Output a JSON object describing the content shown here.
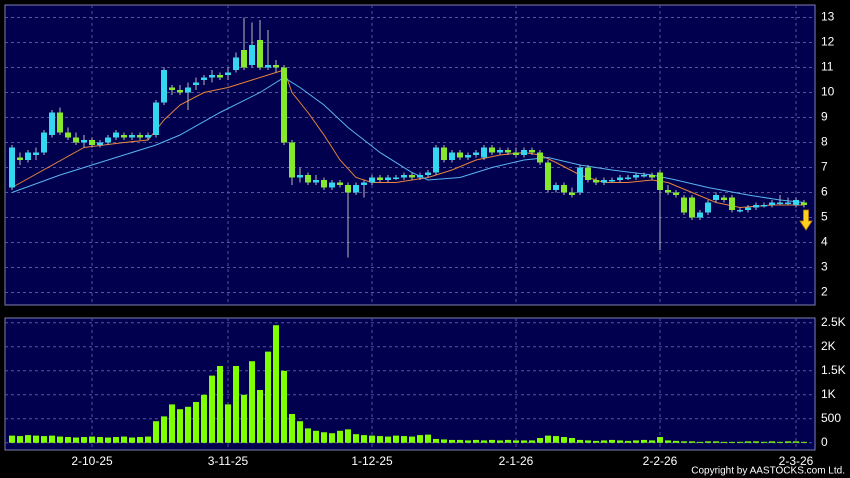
{
  "chart_data": {
    "type": "candlestick",
    "price_ylim": [
      1.5,
      13.5
    ],
    "price_yticks": [
      2,
      3,
      4,
      5,
      6,
      7,
      8,
      9,
      10,
      11,
      12,
      13
    ],
    "volume_ylim": [
      -150,
      2600
    ],
    "volume_yticks": [
      0,
      500,
      {
        "value": 1000,
        "label": "1K"
      },
      {
        "value": 1500,
        "label": "1.5K"
      },
      {
        "value": 2000,
        "label": "2K"
      },
      {
        "value": 2500,
        "label": "2.5K"
      }
    ],
    "grid": true,
    "up_color": "#35d6ef",
    "down_color": "#86e82e",
    "volume_color": "#7fff00",
    "categories": [
      null,
      null,
      null,
      null,
      null,
      null,
      null,
      null,
      null,
      null,
      "2-10-25",
      null,
      null,
      null,
      null,
      null,
      null,
      null,
      null,
      null,
      null,
      null,
      null,
      null,
      null,
      null,
      null,
      "3-11-25",
      null,
      null,
      null,
      null,
      null,
      null,
      null,
      null,
      null,
      null,
      null,
      null,
      null,
      null,
      null,
      null,
      null,
      "1-12-25",
      null,
      null,
      null,
      null,
      null,
      null,
      null,
      null,
      null,
      null,
      null,
      null,
      null,
      null,
      null,
      null,
      null,
      "2-1-26",
      null,
      null,
      null,
      null,
      null,
      null,
      null,
      null,
      null,
      null,
      null,
      null,
      null,
      null,
      null,
      null,
      null,
      "2-2-26",
      null,
      null,
      null,
      null,
      null,
      null,
      null,
      null,
      null,
      null,
      null,
      null,
      null,
      null,
      null,
      null,
      "2-3-26",
      null
    ],
    "candles": [
      [
        6.2,
        7.9,
        6.1,
        7.8
      ],
      [
        7.4,
        7.6,
        7.1,
        7.3
      ],
      [
        7.3,
        7.7,
        7.2,
        7.6
      ],
      [
        7.5,
        7.8,
        7.3,
        7.6
      ],
      [
        7.6,
        8.5,
        7.5,
        8.4
      ],
      [
        8.3,
        9.3,
        8.2,
        9.2
      ],
      [
        9.2,
        9.4,
        8.3,
        8.4
      ],
      [
        8.4,
        8.6,
        8.1,
        8.2
      ],
      [
        8.2,
        8.4,
        7.9,
        8.0
      ],
      [
        8.0,
        8.3,
        7.8,
        8.1
      ],
      [
        8.1,
        8.2,
        7.8,
        7.9
      ],
      [
        7.9,
        8.1,
        7.8,
        8.0
      ],
      [
        8.0,
        8.3,
        7.9,
        8.2
      ],
      [
        8.2,
        8.5,
        8.1,
        8.4
      ],
      [
        8.3,
        8.4,
        8.1,
        8.2
      ],
      [
        8.2,
        8.4,
        8.1,
        8.3
      ],
      [
        8.3,
        8.4,
        8.1,
        8.2
      ],
      [
        8.2,
        8.4,
        8.1,
        8.3
      ],
      [
        8.3,
        9.7,
        8.2,
        9.6
      ],
      [
        9.6,
        11.0,
        9.5,
        10.9
      ],
      [
        10.2,
        10.3,
        9.9,
        10.1
      ],
      [
        10.1,
        10.3,
        9.9,
        10.0
      ],
      [
        10.0,
        10.4,
        9.3,
        10.2
      ],
      [
        10.3,
        10.6,
        10.1,
        10.4
      ],
      [
        10.5,
        10.7,
        10.3,
        10.6
      ],
      [
        10.6,
        10.9,
        10.4,
        10.7
      ],
      [
        10.7,
        10.8,
        10.5,
        10.6
      ],
      [
        10.7,
        11.0,
        10.5,
        10.8
      ],
      [
        10.9,
        11.6,
        10.8,
        11.4
      ],
      [
        11.7,
        13.0,
        10.9,
        11.0
      ],
      [
        11.1,
        12.8,
        11.0,
        11.9
      ],
      [
        12.1,
        12.9,
        10.9,
        11.0
      ],
      [
        11.0,
        12.5,
        10.9,
        11.1
      ],
      [
        11.1,
        11.3,
        10.8,
        11.0
      ],
      [
        11.0,
        11.1,
        7.9,
        8.0
      ],
      [
        8.0,
        8.1,
        6.3,
        6.6
      ],
      [
        6.6,
        7.0,
        6.4,
        6.7
      ],
      [
        6.7,
        6.8,
        6.3,
        6.4
      ],
      [
        6.4,
        6.7,
        6.3,
        6.5
      ],
      [
        6.5,
        6.6,
        6.1,
        6.2
      ],
      [
        6.2,
        6.5,
        6.1,
        6.4
      ],
      [
        6.4,
        6.5,
        6.2,
        6.3
      ],
      [
        6.3,
        6.4,
        3.4,
        6.0
      ],
      [
        6.0,
        6.4,
        5.9,
        6.3
      ],
      [
        6.3,
        6.5,
        5.8,
        6.4
      ],
      [
        6.4,
        6.7,
        6.3,
        6.6
      ],
      [
        6.6,
        6.7,
        6.4,
        6.5
      ],
      [
        6.5,
        6.7,
        6.4,
        6.6
      ],
      [
        6.6,
        6.7,
        6.5,
        6.6
      ],
      [
        6.6,
        6.8,
        6.5,
        6.7
      ],
      [
        6.7,
        6.8,
        6.5,
        6.6
      ],
      [
        6.6,
        6.8,
        6.5,
        6.7
      ],
      [
        6.7,
        6.9,
        6.6,
        6.8
      ],
      [
        6.8,
        7.9,
        6.7,
        7.8
      ],
      [
        7.8,
        7.9,
        7.2,
        7.3
      ],
      [
        7.3,
        7.7,
        7.2,
        7.6
      ],
      [
        7.6,
        7.7,
        7.3,
        7.4
      ],
      [
        7.4,
        7.6,
        7.3,
        7.5
      ],
      [
        7.5,
        7.7,
        7.4,
        7.6
      ],
      [
        7.4,
        7.9,
        7.3,
        7.8
      ],
      [
        7.8,
        7.9,
        7.5,
        7.6
      ],
      [
        7.6,
        7.8,
        7.5,
        7.7
      ],
      [
        7.7,
        7.8,
        7.5,
        7.6
      ],
      [
        7.6,
        7.8,
        7.4,
        7.5
      ],
      [
        7.5,
        7.8,
        7.4,
        7.7
      ],
      [
        7.7,
        7.8,
        7.5,
        7.6
      ],
      [
        7.6,
        7.7,
        7.1,
        7.2
      ],
      [
        7.2,
        7.3,
        6.0,
        6.1
      ],
      [
        6.1,
        6.4,
        6.0,
        6.3
      ],
      [
        6.3,
        6.4,
        5.9,
        6.0
      ],
      [
        6.0,
        6.2,
        5.8,
        5.9
      ],
      [
        6.0,
        7.1,
        5.9,
        7.0
      ],
      [
        7.0,
        7.1,
        6.4,
        6.5
      ],
      [
        6.5,
        6.6,
        6.3,
        6.4
      ],
      [
        6.4,
        6.6,
        6.3,
        6.5
      ],
      [
        6.5,
        6.6,
        6.4,
        6.5
      ],
      [
        6.5,
        6.7,
        6.4,
        6.6
      ],
      [
        6.6,
        6.7,
        6.5,
        6.6
      ],
      [
        6.6,
        6.8,
        6.5,
        6.7
      ],
      [
        6.7,
        6.8,
        6.6,
        6.7
      ],
      [
        6.7,
        6.8,
        6.5,
        6.6
      ],
      [
        6.8,
        6.9,
        3.7,
        6.1
      ],
      [
        6.1,
        6.3,
        5.9,
        6.0
      ],
      [
        6.0,
        6.1,
        5.8,
        5.9
      ],
      [
        5.8,
        5.9,
        5.1,
        5.2
      ],
      [
        5.8,
        5.9,
        4.9,
        5.0
      ],
      [
        5.0,
        5.3,
        4.9,
        5.2
      ],
      [
        5.2,
        5.7,
        5.1,
        5.6
      ],
      [
        5.7,
        6.0,
        5.6,
        5.9
      ],
      [
        5.8,
        5.9,
        5.6,
        5.7
      ],
      [
        5.8,
        5.9,
        5.2,
        5.3
      ],
      [
        5.3,
        5.4,
        5.2,
        5.3
      ],
      [
        5.3,
        5.5,
        5.2,
        5.4
      ],
      [
        5.4,
        5.6,
        5.3,
        5.5
      ],
      [
        5.5,
        5.6,
        5.4,
        5.5
      ],
      [
        5.5,
        5.7,
        5.4,
        5.6
      ],
      [
        5.6,
        5.9,
        5.5,
        5.6
      ],
      [
        5.6,
        5.8,
        5.5,
        5.6
      ],
      [
        5.5,
        5.8,
        5.4,
        5.7
      ],
      [
        5.6,
        5.7,
        5.4,
        5.5
      ]
    ],
    "volume": [
      150,
      140,
      160,
      150,
      140,
      150,
      130,
      120,
      110,
      120,
      130,
      120,
      110,
      120,
      130,
      110,
      120,
      130,
      450,
      550,
      800,
      700,
      750,
      850,
      1000,
      1400,
      1600,
      800,
      1600,
      1000,
      1700,
      1100,
      1900,
      2450,
      1500,
      600,
      450,
      300,
      250,
      220,
      200,
      250,
      280,
      180,
      160,
      150,
      140,
      130,
      150,
      140,
      130,
      160,
      170,
      80,
      70,
      60,
      60,
      50,
      60,
      50,
      60,
      50,
      60,
      50,
      50,
      50,
      100,
      150,
      140,
      120,
      100,
      60,
      50,
      40,
      50,
      60,
      50,
      40,
      50,
      60,
      50,
      120,
      50,
      40,
      30,
      30,
      20,
      30,
      30,
      20,
      20,
      20,
      30,
      30,
      20,
      30,
      20,
      30,
      30,
      20
    ],
    "ma": [
      {
        "color": "#e8823a",
        "x": [
          0,
          9,
          14,
          17,
          19,
          21,
          24,
          27,
          30,
          33,
          34,
          35,
          37,
          39,
          41,
          43,
          45,
          48,
          52,
          55,
          58,
          61,
          64,
          66,
          68,
          71,
          74,
          77,
          80,
          82,
          85,
          88,
          91,
          95,
          99
        ],
        "values": [
          6.2,
          7.8,
          8.0,
          8.1,
          8.9,
          9.5,
          10.0,
          10.2,
          10.5,
          10.8,
          10.9,
          10.0,
          9.2,
          8.3,
          7.3,
          6.6,
          6.4,
          6.4,
          6.6,
          6.9,
          7.3,
          7.5,
          7.6,
          7.5,
          7.2,
          6.7,
          6.4,
          6.4,
          6.5,
          6.4,
          6.0,
          5.6,
          5.4,
          5.5,
          5.5
        ]
      },
      {
        "color": "#5ab4f0",
        "x": [
          0,
          6,
          14,
          18,
          21,
          26,
          31,
          34,
          36,
          39,
          42,
          46,
          50,
          52,
          56,
          60,
          64,
          67,
          71,
          75,
          80,
          83,
          87,
          92,
          96,
          99
        ],
        "values": [
          6.0,
          6.7,
          7.5,
          7.9,
          8.3,
          9.2,
          10.0,
          10.6,
          10.2,
          9.5,
          8.6,
          7.6,
          6.8,
          6.5,
          6.6,
          7.0,
          7.3,
          7.4,
          7.1,
          6.9,
          6.7,
          6.5,
          6.2,
          5.9,
          5.7,
          5.6
        ]
      }
    ],
    "copyright": "Copyright by AASTOCKS.com Ltd."
  }
}
